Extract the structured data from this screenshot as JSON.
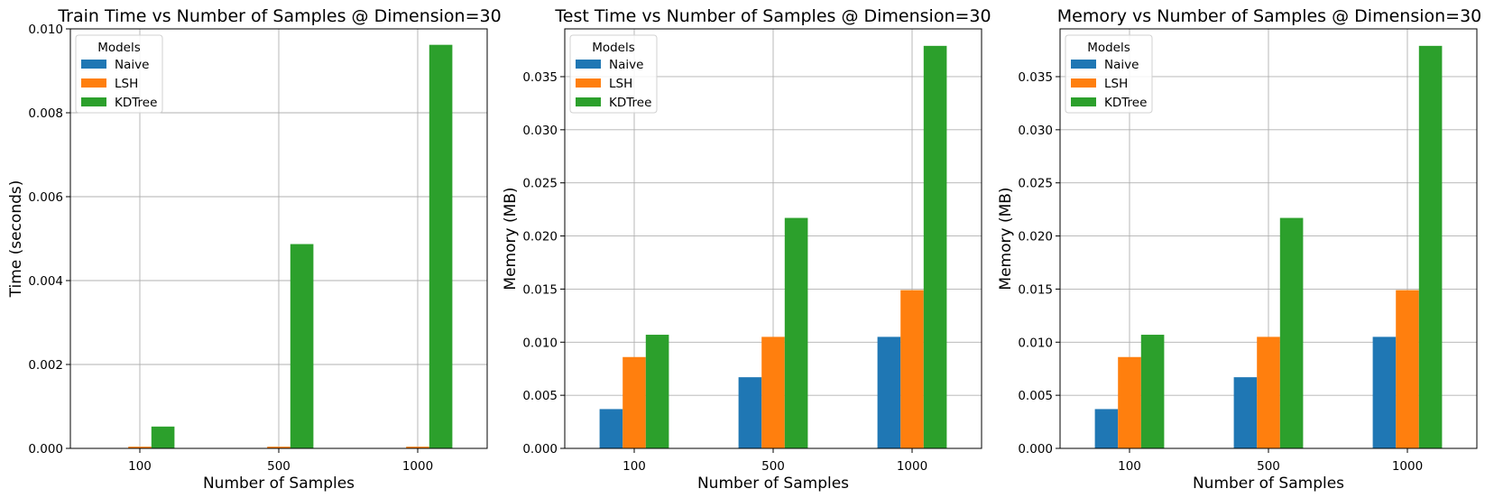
{
  "chart_data": [
    {
      "type": "bar",
      "title": "Train Time vs Number of Samples @ Dimension=30",
      "xlabel": "Number of Samples",
      "ylabel": "Time (seconds)",
      "categories": [
        "100",
        "500",
        "1000"
      ],
      "ylim": [
        0,
        0.01
      ],
      "yticks": [
        "0.000",
        "0.002",
        "0.004",
        "0.006",
        "0.008",
        "0.010"
      ],
      "grid": true,
      "legend": {
        "title": "Models",
        "position": "upper-left"
      },
      "series": [
        {
          "name": "Naive",
          "values": [
            0.0,
            0.0,
            0.0
          ]
        },
        {
          "name": "LSH",
          "values": [
            4e-05,
            4e-05,
            4e-05
          ]
        },
        {
          "name": "KDTree",
          "values": [
            0.00052,
            0.00487,
            0.00962
          ]
        }
      ]
    },
    {
      "type": "bar",
      "title": "Test Time vs Number of Samples @ Dimension=30",
      "xlabel": "Number of Samples",
      "ylabel": "Memory (MB)",
      "categories": [
        "100",
        "500",
        "1000"
      ],
      "ylim": [
        0,
        0.0395
      ],
      "yticks": [
        "0.000",
        "0.005",
        "0.010",
        "0.015",
        "0.020",
        "0.025",
        "0.030",
        "0.035"
      ],
      "grid": true,
      "legend": {
        "title": "Models",
        "position": "upper-left"
      },
      "series": [
        {
          "name": "Naive",
          "values": [
            0.0037,
            0.0067,
            0.0105
          ]
        },
        {
          "name": "LSH",
          "values": [
            0.0086,
            0.0105,
            0.0149
          ]
        },
        {
          "name": "KDTree",
          "values": [
            0.0107,
            0.0217,
            0.0379
          ]
        }
      ]
    },
    {
      "type": "bar",
      "title": "Memory vs Number of Samples @ Dimension=30",
      "xlabel": "Number of Samples",
      "ylabel": "Memory (MB)",
      "categories": [
        "100",
        "500",
        "1000"
      ],
      "ylim": [
        0,
        0.0395
      ],
      "yticks": [
        "0.000",
        "0.005",
        "0.010",
        "0.015",
        "0.020",
        "0.025",
        "0.030",
        "0.035"
      ],
      "grid": true,
      "legend": {
        "title": "Models",
        "position": "upper-left"
      },
      "series": [
        {
          "name": "Naive",
          "values": [
            0.0037,
            0.0067,
            0.0105
          ]
        },
        {
          "name": "LSH",
          "values": [
            0.0086,
            0.0105,
            0.0149
          ]
        },
        {
          "name": "KDTree",
          "values": [
            0.0107,
            0.0217,
            0.0379
          ]
        }
      ]
    }
  ],
  "colors": {
    "Naive": "#1f77b4",
    "LSH": "#ff7f0e",
    "KDTree": "#2ca02c",
    "grid": "#b0b0b0",
    "axes": "#000000"
  }
}
